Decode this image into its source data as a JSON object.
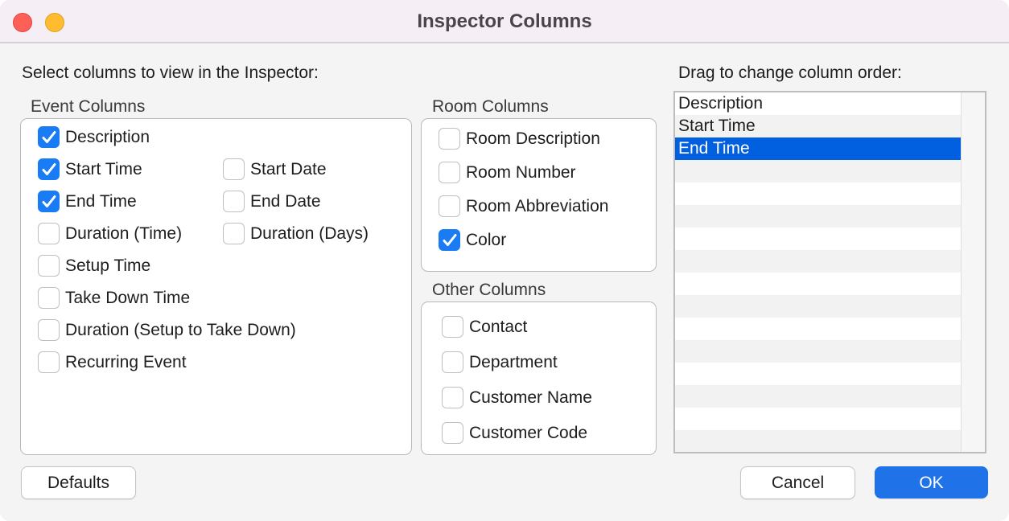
{
  "window": {
    "title": "Inspector Columns",
    "colors": {
      "close": "#fe5f57",
      "minimize": "#febc2e",
      "accent": "#1a7cf5",
      "selection": "#0060df"
    }
  },
  "instructions": "Select columns to view in the Inspector:",
  "event_columns": {
    "title": "Event Columns",
    "items": [
      {
        "label": "Description",
        "checked": true
      },
      {
        "label": "Start Time",
        "checked": true
      },
      {
        "label": "End Time",
        "checked": true
      },
      {
        "label": "Duration (Time)",
        "checked": false
      },
      {
        "label": "Setup Time",
        "checked": false
      },
      {
        "label": "Take Down Time",
        "checked": false
      },
      {
        "label": "Duration (Setup to Take Down)",
        "checked": false
      },
      {
        "label": "Recurring Event",
        "checked": false
      },
      {
        "label": "Start Date",
        "checked": false
      },
      {
        "label": "End Date",
        "checked": false
      },
      {
        "label": "Duration (Days)",
        "checked": false
      }
    ]
  },
  "room_columns": {
    "title": "Room Columns",
    "items": [
      {
        "label": "Room Description",
        "checked": false
      },
      {
        "label": "Room Number",
        "checked": false
      },
      {
        "label": "Room Abbreviation",
        "checked": false
      },
      {
        "label": "Color",
        "checked": true
      }
    ]
  },
  "other_columns": {
    "title": "Other Columns",
    "items": [
      {
        "label": "Contact",
        "checked": false
      },
      {
        "label": "Department",
        "checked": false
      },
      {
        "label": "Customer Name",
        "checked": false
      },
      {
        "label": "Customer Code",
        "checked": false
      }
    ]
  },
  "order": {
    "title": "Drag to change column order:",
    "items": [
      "Description",
      "Start Time",
      "End Time"
    ],
    "selected": "End Time"
  },
  "buttons": {
    "defaults": "Defaults",
    "cancel": "Cancel",
    "ok": "OK"
  }
}
